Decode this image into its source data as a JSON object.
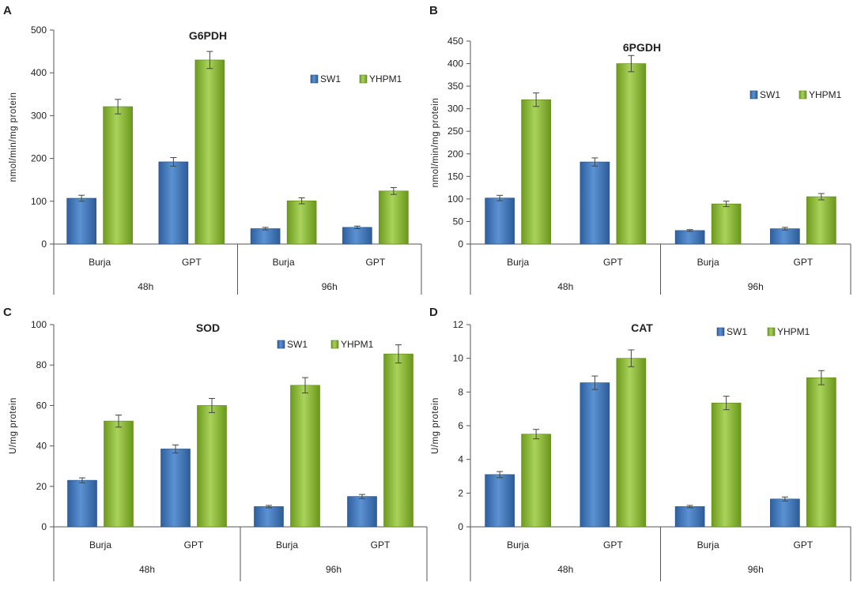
{
  "chart_data": [
    {
      "panel": "A",
      "type": "bar",
      "title": "G6PDH",
      "ylabel": "nmol/min/mg protein",
      "ylim": [
        0,
        500
      ],
      "yticks": [
        0,
        100,
        200,
        300,
        400,
        500
      ],
      "categories": [
        "Burja",
        "GPT",
        "Burja",
        "GPT"
      ],
      "groups": [
        {
          "label": "48h"
        },
        {
          "label": "96h"
        }
      ],
      "series": [
        {
          "name": "SW1",
          "values": [
            107,
            192,
            36,
            39
          ],
          "errors": [
            7,
            10,
            3,
            3
          ]
        },
        {
          "name": "YHPM1",
          "values": [
            321,
            430,
            101,
            124
          ],
          "errors": [
            17,
            20,
            7,
            8
          ]
        }
      ],
      "legend": "top-right"
    },
    {
      "panel": "B",
      "type": "bar",
      "title": "6PGDH",
      "ylabel": "nmol/min/mg protein",
      "ylim": [
        0,
        450
      ],
      "yticks": [
        0,
        50,
        100,
        150,
        200,
        250,
        300,
        350,
        400,
        450
      ],
      "categories": [
        "Burja",
        "GPT",
        "Burja",
        "GPT"
      ],
      "groups": [
        {
          "label": "48h"
        },
        {
          "label": "96h"
        }
      ],
      "series": [
        {
          "name": "SW1",
          "values": [
            102,
            182,
            30,
            34
          ],
          "errors": [
            6,
            9,
            2,
            3
          ]
        },
        {
          "name": "YHPM1",
          "values": [
            320,
            400,
            89,
            105
          ],
          "errors": [
            15,
            18,
            6,
            7
          ]
        }
      ],
      "legend": "top-right"
    },
    {
      "panel": "C",
      "type": "bar",
      "title": "SOD",
      "ylabel": "U/mg protein",
      "ylim": [
        0,
        100
      ],
      "yticks": [
        0,
        20,
        40,
        60,
        80,
        100
      ],
      "categories": [
        "Burja",
        "GPT",
        "Burja",
        "GPT"
      ],
      "groups": [
        {
          "label": "48h"
        },
        {
          "label": "96h"
        }
      ],
      "series": [
        {
          "name": "SW1",
          "values": [
            23,
            38.5,
            10,
            15
          ],
          "errors": [
            1.2,
            2,
            0.6,
            1
          ]
        },
        {
          "name": "YHPM1",
          "values": [
            52.3,
            60,
            70,
            85.5
          ],
          "errors": [
            3,
            3.5,
            3.8,
            4.5
          ]
        }
      ],
      "legend": "top-right"
    },
    {
      "panel": "D",
      "type": "bar",
      "title": "CAT",
      "ylabel": "U/mg protein",
      "ylim": [
        0,
        12
      ],
      "yticks": [
        0,
        2,
        4,
        6,
        8,
        10,
        12
      ],
      "categories": [
        "Burja",
        "GPT",
        "Burja",
        "GPT"
      ],
      "groups": [
        {
          "label": "48h"
        },
        {
          "label": "96h"
        }
      ],
      "series": [
        {
          "name": "SW1",
          "values": [
            3.1,
            8.55,
            1.2,
            1.65
          ],
          "errors": [
            0.18,
            0.4,
            0.07,
            0.12
          ]
        },
        {
          "name": "YHPM1",
          "values": [
            5.5,
            10,
            7.35,
            8.85
          ],
          "errors": [
            0.28,
            0.5,
            0.4,
            0.42
          ]
        }
      ],
      "legend": "top-right"
    }
  ]
}
